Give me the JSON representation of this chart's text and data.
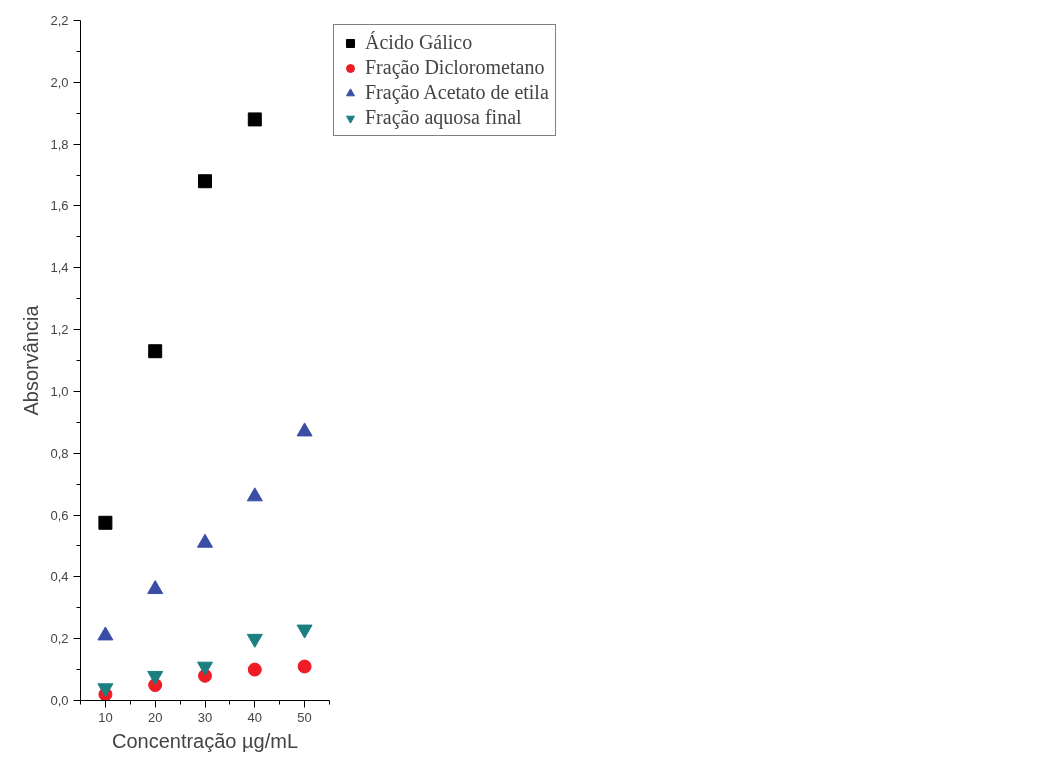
{
  "chart_data": {
    "type": "scatter",
    "xlabel": "Concentração µg/mL",
    "ylabel": "Absorvância",
    "x": [
      10,
      20,
      30,
      40,
      50
    ],
    "series": [
      {
        "name": "Ácido Gálico",
        "color": "#000000",
        "marker": "square",
        "values": [
          0.575,
          1.13,
          1.68,
          1.88,
          null
        ]
      },
      {
        "name": "Fração Diclorometano",
        "color": "#ee1c25",
        "marker": "circle",
        "values": [
          0.02,
          0.05,
          0.08,
          0.1,
          0.11
        ]
      },
      {
        "name": "Fração Acetato de etila",
        "color": "#3a4ea6",
        "marker": "triangle",
        "values": [
          0.21,
          0.36,
          0.51,
          0.66,
          0.87
        ]
      },
      {
        "name": "Fração aquosa final",
        "color": "#1b7f80",
        "marker": "triangle_down",
        "values": [
          0.04,
          0.08,
          0.11,
          0.2,
          0.23
        ]
      }
    ],
    "xlim": [
      5,
      55
    ],
    "ylim": [
      0,
      2.2
    ],
    "xticks": [
      10,
      20,
      30,
      40,
      50
    ],
    "yticks": [
      {
        "value": 0,
        "label": "0,0"
      },
      {
        "value": 0.2,
        "label": "0,2"
      },
      {
        "value": 0.4,
        "label": "0,4"
      },
      {
        "value": 0.6,
        "label": "0,6"
      },
      {
        "value": 0.8,
        "label": "0,8"
      },
      {
        "value": 1.0,
        "label": "1,0"
      },
      {
        "value": 1.2,
        "label": "1,2"
      },
      {
        "value": 1.4,
        "label": "1,4"
      },
      {
        "value": 1.6,
        "label": "1,6"
      },
      {
        "value": 1.8,
        "label": "1,8"
      },
      {
        "value": 2.0,
        "label": "2,0"
      },
      {
        "value": 2.2,
        "label": "2,2"
      }
    ],
    "grid": false,
    "legend": "top right"
  }
}
